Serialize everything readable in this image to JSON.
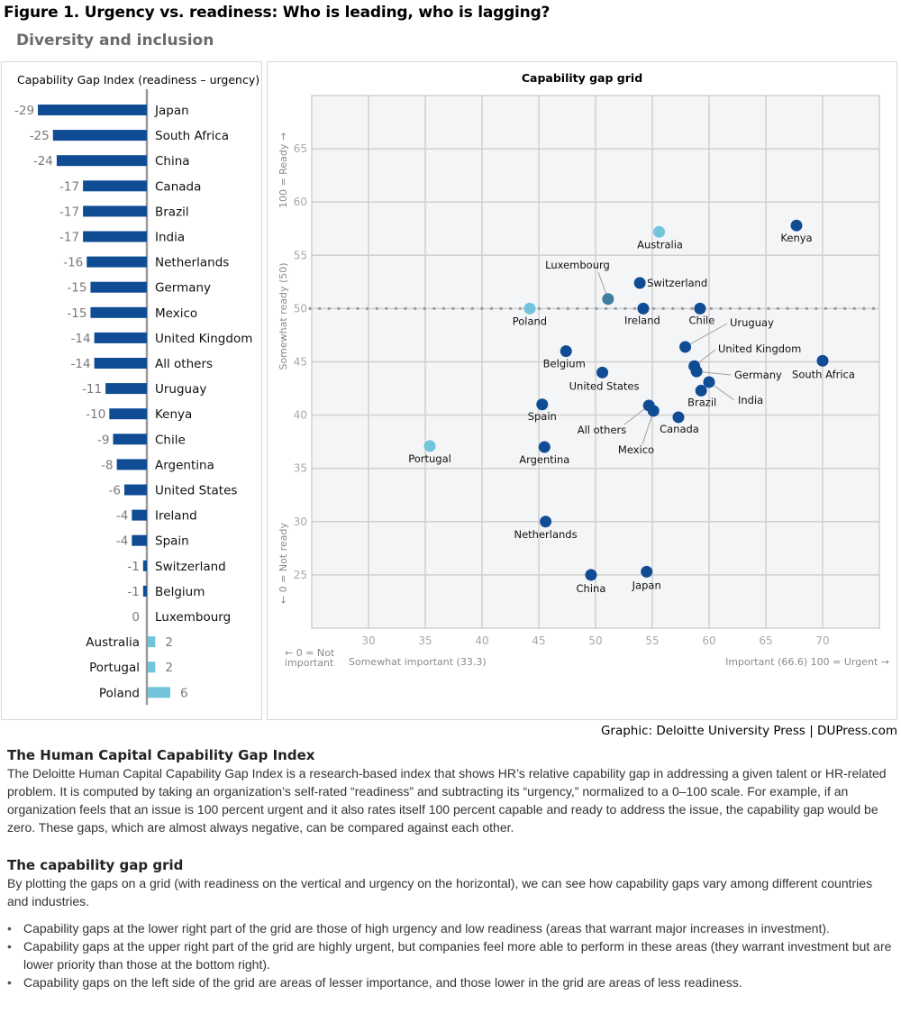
{
  "figure": {
    "title": "Figure 1. Urgency vs. readiness: Who is leading, who is lagging?",
    "subtitle": "Diversity and inclusion",
    "credit": "Graphic: Deloitte University Press  |  DUPress.com"
  },
  "colors": {
    "negative_bar": "#0f4c94",
    "positive_bar": "#72c4db",
    "point_dark": "#0f4c94",
    "point_light": "#72c4db",
    "point_mid": "#3d7f9e",
    "grid_bg": "#f4f5f7",
    "grid_line": "#d0d0d0",
    "axis_text": "#a8a8a8"
  },
  "chart_data": [
    {
      "type": "bar",
      "orientation": "horizontal",
      "title": "Capability Gap Index (readiness – urgency)",
      "categories": [
        "Japan",
        "South Africa",
        "China",
        "Canada",
        "Brazil",
        "India",
        "Netherlands",
        "Germany",
        "Mexico",
        "United Kingdom",
        "All others",
        "Uruguay",
        "Kenya",
        "Chile",
        "Argentina",
        "United States",
        "Ireland",
        "Spain",
        "Switzerland",
        "Belgium",
        "Luxembourg",
        "Australia",
        "Portugal",
        "Poland"
      ],
      "values": [
        -29,
        -25,
        -24,
        -17,
        -17,
        -17,
        -16,
        -15,
        -15,
        -14,
        -14,
        -11,
        -10,
        -9,
        -8,
        -6,
        -4,
        -4,
        -1,
        -1,
        0,
        2,
        2,
        6
      ],
      "xlim": [
        -30,
        7
      ]
    },
    {
      "type": "scatter",
      "title": "Capability gap grid",
      "xlabel_left": "← 0 = Not important",
      "xlabel_mid": "Somewhat important (33.3)",
      "xlabel_right": "Important (66.6)  100 = Urgent →",
      "ylabel_top": "100 = Ready →",
      "ylabel_mid": "Somewhat ready (50)",
      "ylabel_bottom": "← 0 = Not ready",
      "xlim": [
        25,
        75
      ],
      "ylim": [
        20,
        70
      ],
      "xticks": [
        30,
        35,
        40,
        45,
        50,
        55,
        60,
        65,
        70
      ],
      "yticks": [
        25,
        30,
        35,
        40,
        45,
        50,
        55,
        60,
        65
      ],
      "reference_line_y": 50,
      "grid": true,
      "points": [
        {
          "label": "Kenya",
          "x": 67.7,
          "y": 57.8,
          "group": "negative"
        },
        {
          "label": "Australia",
          "x": 55.6,
          "y": 57.2,
          "group": "positive"
        },
        {
          "label": "Switzerland",
          "x": 53.9,
          "y": 52.4,
          "group": "negative"
        },
        {
          "label": "Luxembourg",
          "x": 51.1,
          "y": 50.9,
          "group": "zero"
        },
        {
          "label": "Poland",
          "x": 44.2,
          "y": 50.0,
          "group": "positive"
        },
        {
          "label": "Ireland",
          "x": 54.2,
          "y": 50.0,
          "group": "negative"
        },
        {
          "label": "Chile",
          "x": 59.2,
          "y": 50.0,
          "group": "negative"
        },
        {
          "label": "Uruguay",
          "x": 57.9,
          "y": 46.4,
          "group": "negative"
        },
        {
          "label": "United Kingdom",
          "x": 58.7,
          "y": 44.6,
          "group": "negative"
        },
        {
          "label": "Germany",
          "x": 58.9,
          "y": 44.1,
          "group": "negative"
        },
        {
          "label": "India",
          "x": 60.0,
          "y": 43.1,
          "group": "negative"
        },
        {
          "label": "Brazil",
          "x": 59.3,
          "y": 42.3,
          "group": "negative"
        },
        {
          "label": "South Africa",
          "x": 70.0,
          "y": 45.1,
          "group": "negative"
        },
        {
          "label": "Canada",
          "x": 57.3,
          "y": 39.8,
          "group": "negative"
        },
        {
          "label": "All others",
          "x": 54.7,
          "y": 40.9,
          "group": "negative"
        },
        {
          "label": "Mexico",
          "x": 55.1,
          "y": 40.4,
          "group": "negative"
        },
        {
          "label": "Belgium",
          "x": 47.4,
          "y": 46.0,
          "group": "negative"
        },
        {
          "label": "United States",
          "x": 50.6,
          "y": 44.0,
          "group": "negative"
        },
        {
          "label": "Spain",
          "x": 45.3,
          "y": 41.0,
          "group": "negative"
        },
        {
          "label": "Argentina",
          "x": 45.5,
          "y": 37.0,
          "group": "negative"
        },
        {
          "label": "Portugal",
          "x": 35.4,
          "y": 37.1,
          "group": "positive"
        },
        {
          "label": "Netherlands",
          "x": 45.6,
          "y": 30.0,
          "group": "negative"
        },
        {
          "label": "China",
          "x": 49.6,
          "y": 25.0,
          "group": "negative"
        },
        {
          "label": "Japan",
          "x": 54.5,
          "y": 25.3,
          "group": "negative"
        }
      ]
    }
  ],
  "text": {
    "section1_heading": "The Human Capital Capability Gap Index",
    "section1_body": "The Deloitte Human Capital Capability Gap Index is a research-based index that shows HR’s relative capability gap in addressing a given talent or HR-related problem. It is computed by taking an organization’s self-rated “readiness” and subtracting its “urgency,” normalized to a 0–100 scale. For example, if an organization feels that an issue is 100 percent urgent and it also rates itself 100 percent capable and ready to address the issue, the capability gap would be zero. These gaps, which are almost always negative, can be compared against each other.",
    "section2_heading": "The capability gap grid",
    "section2_body": "By plotting the gaps on a grid (with readiness on the vertical and urgency on the horizontal), we can see how capability gaps vary among different countries and industries.",
    "bullets": [
      "Capability gaps at the lower right part of the grid are those of high urgency and low readiness (areas that warrant major increases in investment).",
      "Capability gaps at the upper right part of the grid are highly urgent, but companies feel more able to perform in these areas (they warrant investment but are lower priority than those at the bottom right).",
      "Capability gaps on the left side of the grid are areas of lesser importance, and those lower in the grid are areas of less readiness."
    ]
  }
}
